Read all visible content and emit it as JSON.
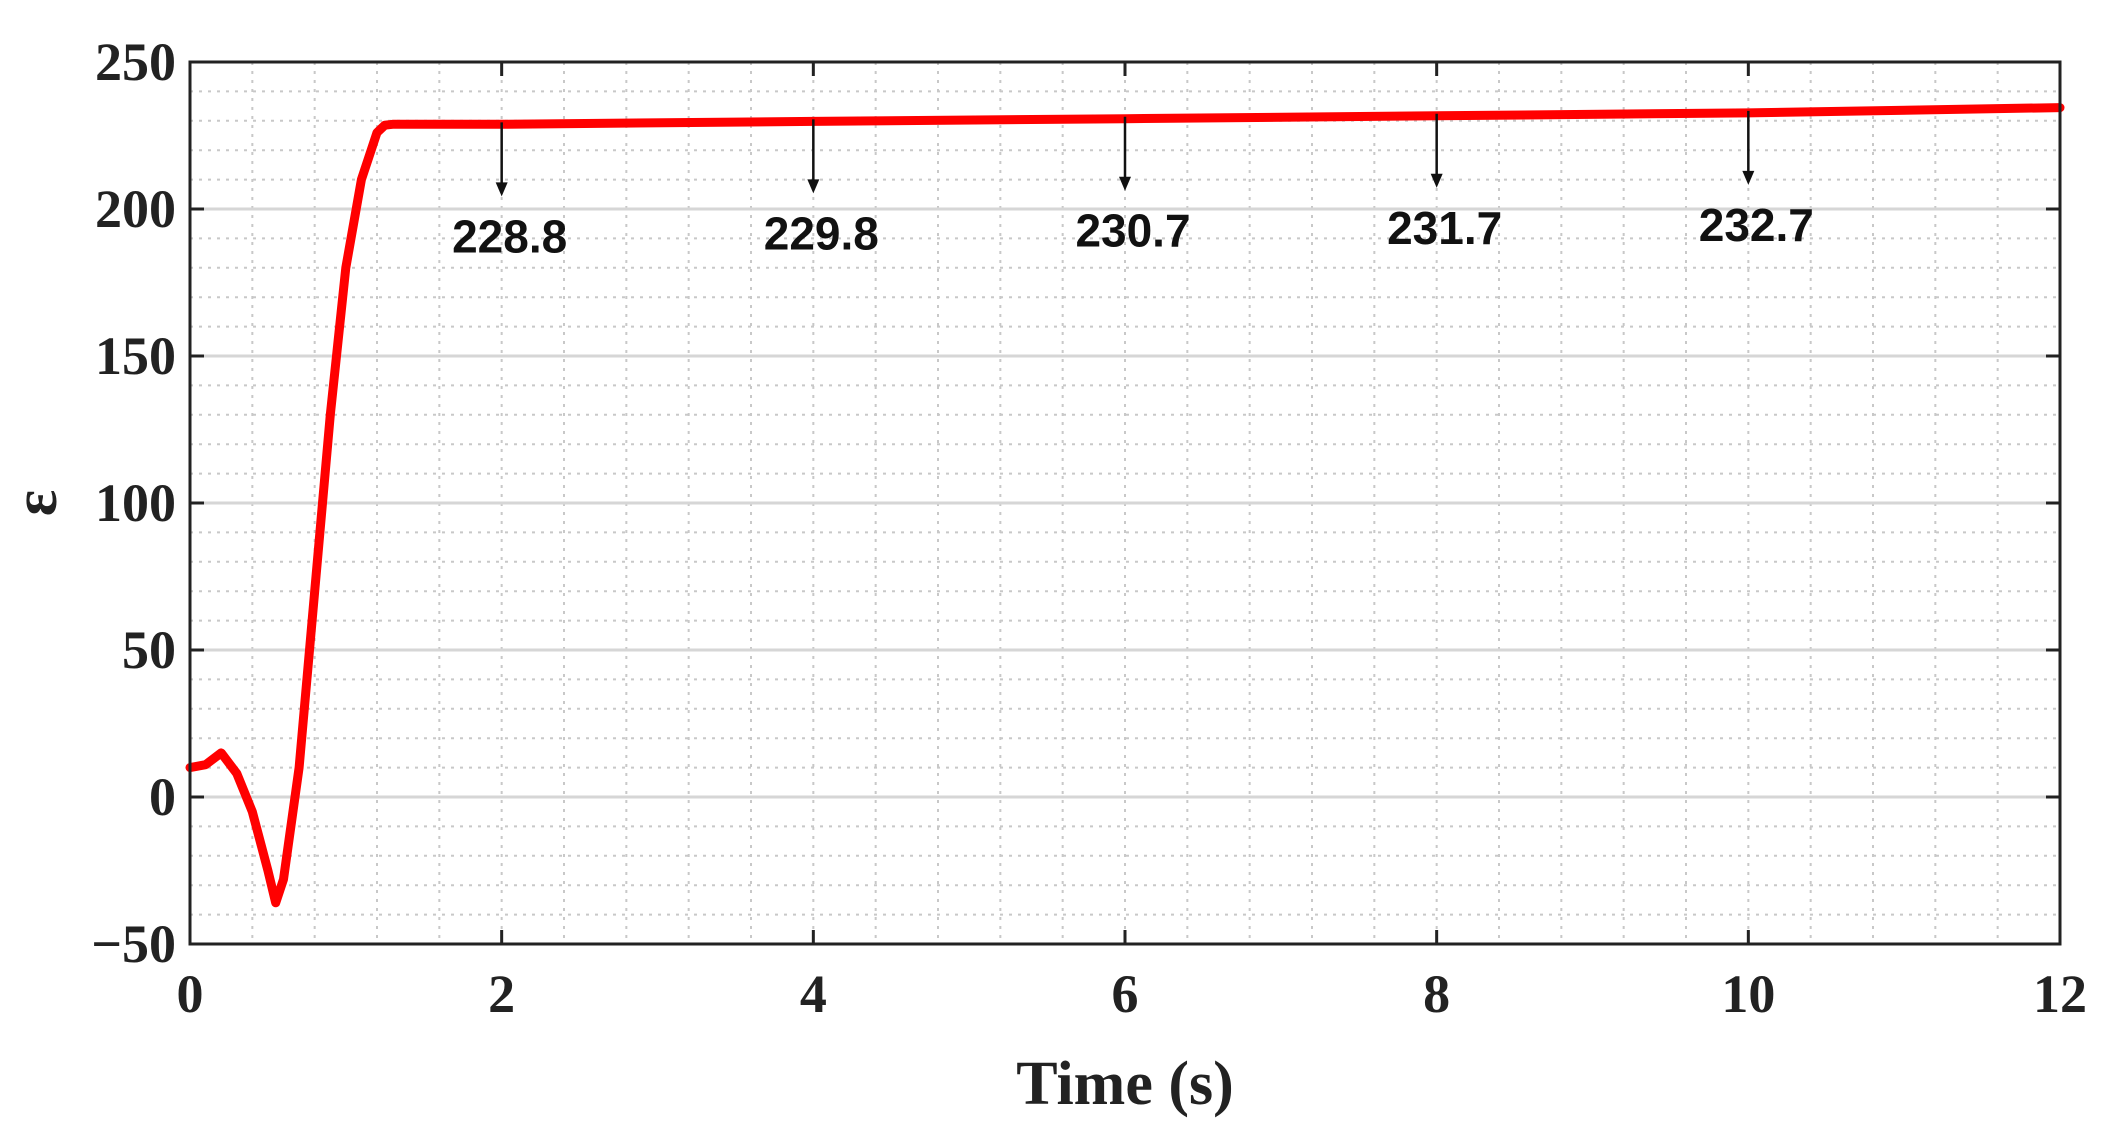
{
  "chart_data": {
    "type": "line",
    "title": "",
    "xlabel": "Time (s)",
    "ylabel": "ε",
    "xlim": [
      0,
      12
    ],
    "ylim": [
      -50,
      250
    ],
    "xticks": [
      "0",
      "2",
      "4",
      "6",
      "8",
      "10",
      "12"
    ],
    "yticks": [
      "−50",
      "0",
      "50",
      "100",
      "150",
      "200",
      "250"
    ],
    "xtick_values": [
      0,
      2,
      4,
      6,
      8,
      10,
      12
    ],
    "ytick_values": [
      -50,
      0,
      50,
      100,
      150,
      200,
      250
    ],
    "grid": true,
    "minor_grid": true,
    "series": [
      {
        "color": "#ff0000",
        "x": [
          0,
          0.1,
          0.2,
          0.3,
          0.4,
          0.5,
          0.55,
          0.6,
          0.7,
          0.8,
          0.9,
          1.0,
          1.1,
          1.2,
          1.25,
          1.3,
          2,
          4,
          6,
          8,
          10,
          12
        ],
        "y": [
          10,
          11,
          15,
          8,
          -5,
          -25,
          -36,
          -28,
          10,
          70,
          130,
          180,
          210,
          226,
          228.5,
          228.8,
          228.8,
          229.8,
          230.7,
          231.7,
          232.7,
          234.5
        ]
      }
    ],
    "annotations": [
      {
        "text": "228.8",
        "x": 2,
        "y": 228.8
      },
      {
        "text": "229.8",
        "x": 4,
        "y": 229.8
      },
      {
        "text": "230.7",
        "x": 6,
        "y": 230.7
      },
      {
        "text": "231.7",
        "x": 8,
        "y": 231.7
      },
      {
        "text": "232.7",
        "x": 10,
        "y": 232.7
      }
    ]
  }
}
